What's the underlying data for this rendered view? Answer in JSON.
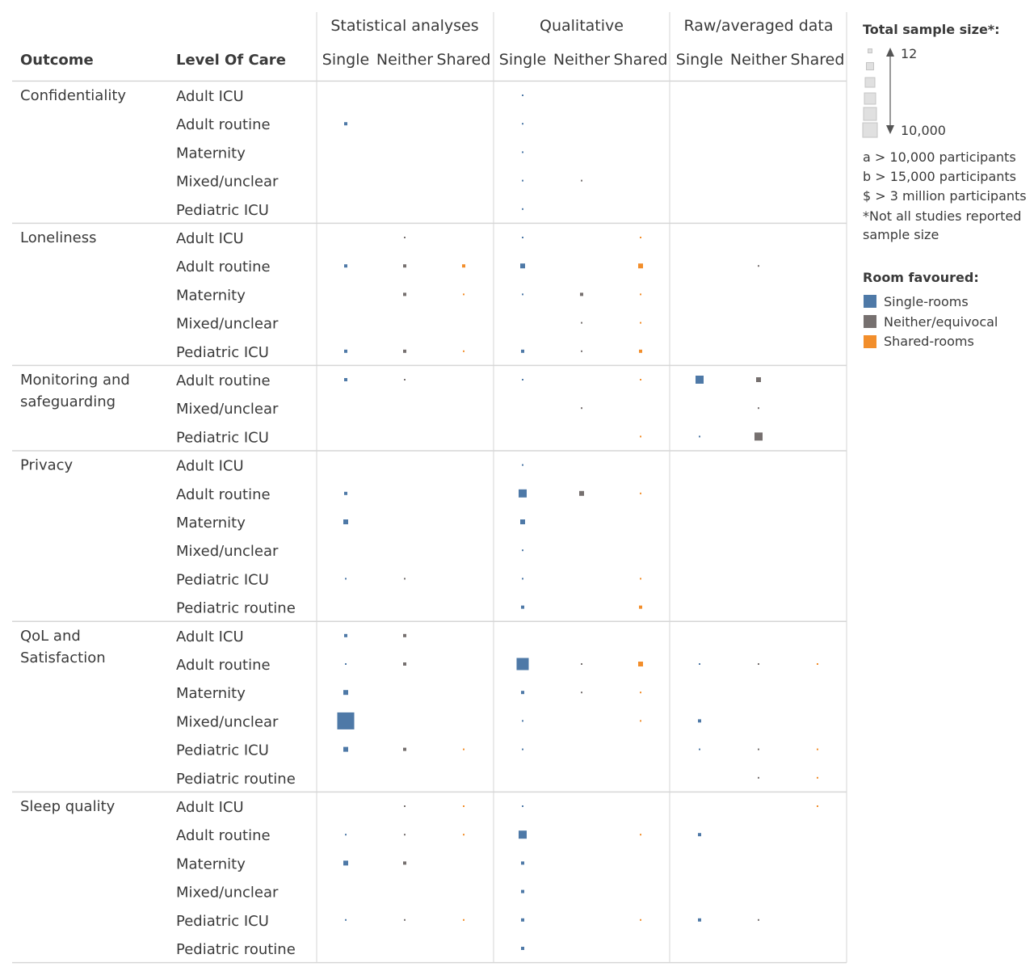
{
  "chart_data": {
    "type": "scatter",
    "headers": {
      "outcome": "Outcome",
      "level_of_care": "Level Of Care",
      "groups": [
        "Statistical analyses",
        "Qualitative",
        "Raw/averaged data"
      ],
      "subcolumns": [
        "Single",
        "Neither",
        "Shared"
      ]
    },
    "colors": {
      "Single-rooms": "#4e79a7",
      "Neither/equivocal": "#76706f",
      "Shared-rooms": "#f28e2b"
    },
    "sections": [
      {
        "outcome": "Confidentiality",
        "rows": [
          {
            "level": "Adult ICU",
            "marks": [
              {
                "col": 3,
                "size": 1
              }
            ]
          },
          {
            "level": "Adult routine",
            "marks": [
              {
                "col": 0,
                "size": 2
              },
              {
                "col": 3,
                "size": 1
              }
            ]
          },
          {
            "level": "Maternity",
            "marks": [
              {
                "col": 3,
                "size": 1
              }
            ]
          },
          {
            "level": "Mixed/unclear",
            "marks": [
              {
                "col": 3,
                "size": 1
              },
              {
                "col": 4,
                "size": 1
              }
            ]
          },
          {
            "level": "Pediatric ICU",
            "marks": [
              {
                "col": 3,
                "size": 1
              }
            ]
          }
        ]
      },
      {
        "outcome": "Loneliness",
        "rows": [
          {
            "level": "Adult ICU",
            "marks": [
              {
                "col": 1,
                "size": 1
              },
              {
                "col": 3,
                "size": 1
              },
              {
                "col": 5,
                "size": 1
              }
            ]
          },
          {
            "level": "Adult routine",
            "marks": [
              {
                "col": 0,
                "size": 2
              },
              {
                "col": 1,
                "size": 2
              },
              {
                "col": 2,
                "size": 2
              },
              {
                "col": 3,
                "size": 3
              },
              {
                "col": 5,
                "size": 3
              },
              {
                "col": 7,
                "size": 1
              }
            ]
          },
          {
            "level": "Maternity",
            "marks": [
              {
                "col": 1,
                "size": 2
              },
              {
                "col": 2,
                "size": 1
              },
              {
                "col": 3,
                "size": 1
              },
              {
                "col": 4,
                "size": 2
              },
              {
                "col": 5,
                "size": 1
              }
            ]
          },
          {
            "level": "Mixed/unclear",
            "marks": [
              {
                "col": 4,
                "size": 1
              },
              {
                "col": 5,
                "size": 1
              }
            ]
          },
          {
            "level": "Pediatric ICU",
            "marks": [
              {
                "col": 0,
                "size": 2
              },
              {
                "col": 1,
                "size": 2
              },
              {
                "col": 2,
                "size": 1
              },
              {
                "col": 3,
                "size": 2
              },
              {
                "col": 4,
                "size": 1
              },
              {
                "col": 5,
                "size": 2
              }
            ]
          }
        ]
      },
      {
        "outcome": "Monitoring and safeguarding",
        "rows": [
          {
            "level": "Adult routine",
            "marks": [
              {
                "col": 0,
                "size": 2
              },
              {
                "col": 1,
                "size": 1
              },
              {
                "col": 3,
                "size": 1
              },
              {
                "col": 5,
                "size": 1
              },
              {
                "col": 6,
                "size": 4
              },
              {
                "col": 7,
                "size": 3
              }
            ]
          },
          {
            "level": "Mixed/unclear",
            "marks": [
              {
                "col": 4,
                "size": 1
              },
              {
                "col": 7,
                "size": 1
              }
            ]
          },
          {
            "level": "Pediatric ICU",
            "marks": [
              {
                "col": 5,
                "size": 1
              },
              {
                "col": 6,
                "size": 1
              },
              {
                "col": 7,
                "size": 4
              }
            ]
          }
        ]
      },
      {
        "outcome": "Privacy",
        "rows": [
          {
            "level": "Adult ICU",
            "marks": [
              {
                "col": 3,
                "size": 1
              }
            ]
          },
          {
            "level": "Adult routine",
            "marks": [
              {
                "col": 0,
                "size": 2
              },
              {
                "col": 3,
                "size": 4
              },
              {
                "col": 4,
                "size": 3
              },
              {
                "col": 5,
                "size": 1
              }
            ]
          },
          {
            "level": "Maternity",
            "marks": [
              {
                "col": 0,
                "size": 3
              },
              {
                "col": 3,
                "size": 3
              }
            ]
          },
          {
            "level": "Mixed/unclear",
            "marks": [
              {
                "col": 3,
                "size": 1
              }
            ]
          },
          {
            "level": "Pediatric ICU",
            "marks": [
              {
                "col": 0,
                "size": 1
              },
              {
                "col": 1,
                "size": 1
              },
              {
                "col": 3,
                "size": 1
              },
              {
                "col": 5,
                "size": 1
              }
            ]
          },
          {
            "level": "Pediatric routine",
            "marks": [
              {
                "col": 3,
                "size": 2
              },
              {
                "col": 5,
                "size": 2
              }
            ]
          }
        ]
      },
      {
        "outcome": "QoL and Satisfaction",
        "rows": [
          {
            "level": "Adult ICU",
            "marks": [
              {
                "col": 0,
                "size": 2
              },
              {
                "col": 1,
                "size": 2
              }
            ]
          },
          {
            "level": "Adult routine",
            "marks": [
              {
                "col": 0,
                "size": 1
              },
              {
                "col": 1,
                "size": 2
              },
              {
                "col": 3,
                "size": 5
              },
              {
                "col": 4,
                "size": 1
              },
              {
                "col": 5,
                "size": 3
              },
              {
                "col": 6,
                "size": 1
              },
              {
                "col": 7,
                "size": 1
              },
              {
                "col": 8,
                "size": 1
              }
            ]
          },
          {
            "level": "Maternity",
            "marks": [
              {
                "col": 0,
                "size": 3
              },
              {
                "col": 3,
                "size": 2
              },
              {
                "col": 4,
                "size": 1
              },
              {
                "col": 5,
                "size": 1
              }
            ]
          },
          {
            "level": "Mixed/unclear",
            "marks": [
              {
                "col": 0,
                "size": 6
              },
              {
                "col": 3,
                "size": 1
              },
              {
                "col": 5,
                "size": 1
              },
              {
                "col": 6,
                "size": 2
              }
            ]
          },
          {
            "level": "Pediatric ICU",
            "marks": [
              {
                "col": 0,
                "size": 3
              },
              {
                "col": 1,
                "size": 2
              },
              {
                "col": 2,
                "size": 1
              },
              {
                "col": 3,
                "size": 1
              },
              {
                "col": 6,
                "size": 1
              },
              {
                "col": 7,
                "size": 1
              },
              {
                "col": 8,
                "size": 1
              }
            ]
          },
          {
            "level": "Pediatric routine",
            "marks": [
              {
                "col": 7,
                "size": 1
              },
              {
                "col": 8,
                "size": 1
              }
            ]
          }
        ]
      },
      {
        "outcome": "Sleep quality",
        "rows": [
          {
            "level": "Adult ICU",
            "marks": [
              {
                "col": 1,
                "size": 1
              },
              {
                "col": 2,
                "size": 1
              },
              {
                "col": 3,
                "size": 1
              },
              {
                "col": 8,
                "size": 1
              }
            ]
          },
          {
            "level": "Adult routine",
            "marks": [
              {
                "col": 0,
                "size": 1
              },
              {
                "col": 1,
                "size": 1
              },
              {
                "col": 2,
                "size": 1
              },
              {
                "col": 3,
                "size": 4
              },
              {
                "col": 5,
                "size": 1
              },
              {
                "col": 6,
                "size": 2
              }
            ]
          },
          {
            "level": "Maternity",
            "marks": [
              {
                "col": 0,
                "size": 3
              },
              {
                "col": 1,
                "size": 2
              },
              {
                "col": 3,
                "size": 2
              }
            ]
          },
          {
            "level": "Mixed/unclear",
            "marks": [
              {
                "col": 3,
                "size": 2
              }
            ]
          },
          {
            "level": "Pediatric ICU",
            "marks": [
              {
                "col": 0,
                "size": 1
              },
              {
                "col": 1,
                "size": 1
              },
              {
                "col": 2,
                "size": 1
              },
              {
                "col": 3,
                "size": 2
              },
              {
                "col": 5,
                "size": 1
              },
              {
                "col": 6,
                "size": 2
              },
              {
                "col": 7,
                "size": 1
              }
            ]
          },
          {
            "level": "Pediatric routine",
            "marks": [
              {
                "col": 3,
                "size": 2
              }
            ]
          }
        ]
      }
    ]
  },
  "legend": {
    "size_title": "Total sample size*:",
    "size_min_label": "12",
    "size_max_label": "10,000",
    "notes": [
      "a  > 10,000 participants",
      "b  > 15,000 participants",
      "$  > 3 million participants",
      "*Not all studies reported",
      "sample size"
    ],
    "color_title": "Room favoured:",
    "color_items": [
      {
        "label": "Single-rooms",
        "color": "#4e79a7"
      },
      {
        "label": "Neither/equivocal",
        "color": "#76706f"
      },
      {
        "label": "Shared-rooms",
        "color": "#f28e2b"
      }
    ]
  }
}
